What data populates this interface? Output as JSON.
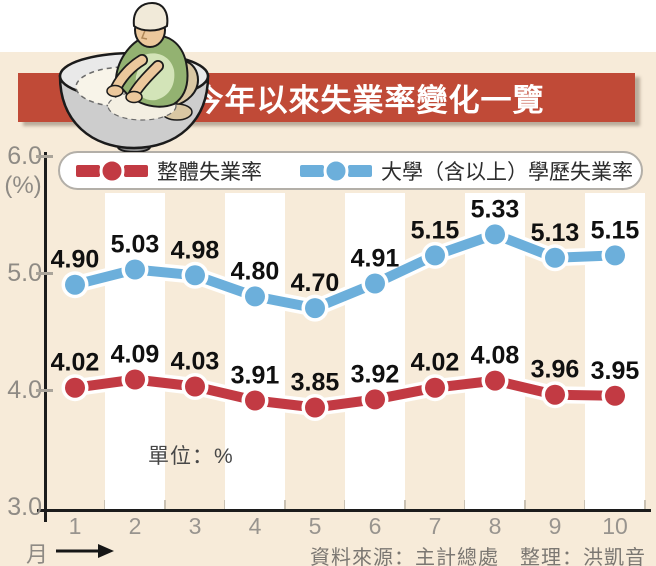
{
  "header": {
    "title": "今年以來失業率變化一覽"
  },
  "legend": {
    "series1_label": "整體失業率",
    "series2_label": "大學（含以上）學歷失業率"
  },
  "axes": {
    "y_unit": "(%)",
    "y_ticks": [
      "6.0",
      "5.0",
      "4.0",
      "3.0"
    ],
    "x_ticks": [
      "1",
      "2",
      "3",
      "4",
      "5",
      "6",
      "7",
      "8",
      "9",
      "10"
    ],
    "x_axis_title": "月"
  },
  "annotations": {
    "unit_note": "單位：%"
  },
  "footer": {
    "source": "資料來源：主計總處　整理：洪凱音"
  },
  "colors": {
    "overall_line": "#c23a43",
    "university_line": "#6cafdb",
    "banner": "#c04a37",
    "background": "#f7ebd9",
    "stripe": "#ffffff"
  },
  "chart_data": {
    "type": "line",
    "title": "今年以來失業率變化一覽",
    "categories": [
      1,
      2,
      3,
      4,
      5,
      6,
      7,
      8,
      9,
      10
    ],
    "series": [
      {
        "name": "整體失業率",
        "color": "#c23a43",
        "values": [
          4.02,
          4.09,
          4.03,
          3.91,
          3.85,
          3.92,
          4.02,
          4.08,
          3.96,
          3.95
        ]
      },
      {
        "name": "大學（含以上）學歷失業率",
        "color": "#6cafdb",
        "values": [
          4.9,
          5.03,
          4.98,
          4.8,
          4.7,
          4.91,
          5.15,
          5.33,
          5.13,
          5.15
        ]
      }
    ],
    "xlabel": "月",
    "ylabel": "(%)",
    "unit": "%",
    "ylim": [
      3.0,
      6.0
    ],
    "y_ticks": [
      3.0,
      4.0,
      5.0,
      6.0
    ],
    "grid": false,
    "legend_position": "top",
    "point_labels": true
  }
}
